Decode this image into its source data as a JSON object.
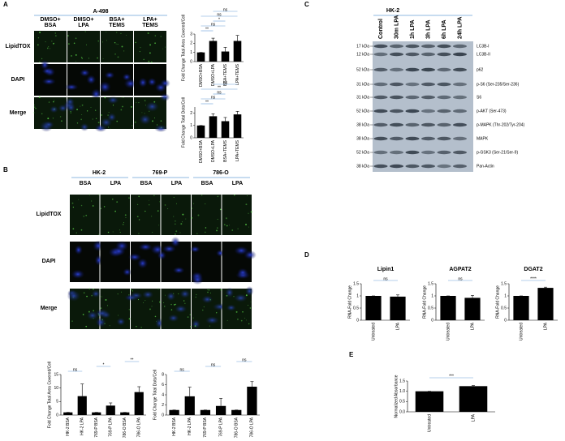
{
  "panels": {
    "a": {
      "letter": "A",
      "title": "A-498",
      "columns": [
        [
          "DMSO+",
          "BSA"
        ],
        [
          "DMSO+",
          "LPA"
        ],
        [
          "BSA+",
          "TEMS"
        ],
        [
          "LPA+",
          "TEMS"
        ]
      ],
      "rows": [
        "LipidTOX",
        "DAPI",
        "Merge"
      ]
    },
    "b": {
      "letter": "B",
      "groups": [
        "HK-2",
        "769-P",
        "786-O"
      ],
      "columns": [
        "BSA",
        "LPA",
        "BSA",
        "LPA",
        "BSA",
        "LPA"
      ],
      "rows": [
        "LipidTOX",
        "DAPI",
        "Merge"
      ]
    },
    "c": {
      "letter": "C",
      "title": "HK-2",
      "lanes": [
        "Control",
        "30m LPA",
        "1h LPA",
        "3h LPA",
        "6h LPA",
        "24h LPA"
      ],
      "sizes": [
        "17 kDa",
        "12 kDa",
        "52 kDa",
        "31 kDa",
        "31 kDa",
        "52 kDa",
        "38 kDa",
        "38 kDa",
        "52 kDa",
        "38 kDa"
      ],
      "proteins": [
        "LC3B-I",
        "LC3B-II",
        "p62",
        "p-S6 (Ser-235/Ser-236)",
        "S6",
        "p-AKT (Ser-473)",
        "p-MAPK (Thr-202/Tyr-204)",
        "MAPK",
        "p-GSK3 (Ser-21/Ser-9)",
        "Pan-Actin"
      ]
    },
    "d": {
      "letter": "D"
    },
    "e": {
      "letter": "E"
    }
  },
  "chart_data": [
    {
      "type": "bar",
      "ylabel": "Fold Change Total Area Covered/Cell",
      "categories": [
        "DMSO+BSA",
        "DMSO+LPA",
        "BSA+TEMS",
        "LPA+TEMS"
      ],
      "values": [
        1,
        2.25,
        1.1,
        2.25
      ],
      "errors": [
        0,
        0.3,
        0.45,
        0.6
      ],
      "color": "#000000",
      "ylim": [
        0,
        3
      ],
      "yticks": [
        0,
        1,
        2,
        3
      ],
      "brackets": [
        {
          "label": "**",
          "from": 0,
          "to": 1
        },
        {
          "label": "ns",
          "from": 0,
          "to": 2
        },
        {
          "label": "*",
          "from": 1,
          "to": 2
        },
        {
          "label": "ns",
          "from": 0,
          "to": 3
        },
        {
          "label": "ns",
          "from": 1,
          "to": 3
        }
      ]
    },
    {
      "type": "bar",
      "ylabel": "Fold Change Total Dots/Cell",
      "categories": [
        "DMSO+BSA",
        "DMSO+LPA",
        "BSA+TEMS",
        "LPA+TEMS"
      ],
      "values": [
        1,
        1.75,
        1.35,
        1.9
      ],
      "errors": [
        0,
        0.2,
        0.3,
        0.25
      ],
      "color": "#000000",
      "ylim": [
        0,
        2.5
      ],
      "yticks": [
        0,
        1,
        2
      ],
      "brackets": [
        {
          "label": "**",
          "from": 0,
          "to": 1
        },
        {
          "label": "ns",
          "from": 0,
          "to": 2
        },
        {
          "label": "ns",
          "from": 1,
          "to": 2
        },
        {
          "label": "**",
          "from": 0,
          "to": 3
        },
        {
          "label": "ns",
          "from": 1,
          "to": 3
        }
      ]
    },
    {
      "type": "bar",
      "ylabel": "Fold Change Total Area Covered/Cell",
      "categories": [
        "HK-2 BSA",
        "HK-2 LPA",
        "769-P BSA",
        "769-P LPA",
        "786-O BSA",
        "786-O LPA"
      ],
      "values": [
        1,
        7,
        1,
        3.5,
        1,
        8.5
      ],
      "errors": [
        0,
        4.5,
        0,
        1,
        0,
        2
      ],
      "color": "#000000",
      "ylim": [
        0,
        15
      ],
      "yticks": [
        0,
        5,
        10,
        15
      ],
      "brackets": [
        {
          "label": "ns",
          "from": 0,
          "to": 1
        },
        {
          "label": "*",
          "from": 2,
          "to": 3
        },
        {
          "label": "**",
          "from": 4,
          "to": 5
        }
      ]
    },
    {
      "type": "bar",
      "ylabel": "Fold Change Total Dots/Cell",
      "categories": [
        "HK-2 BSA",
        "HK-2 LPA",
        "769-P BSA",
        "769-P LPA",
        "786-O BSA",
        "786-O LPA"
      ],
      "values": [
        1,
        3.7,
        1,
        1.8,
        1,
        5.6
      ],
      "errors": [
        0,
        1.8,
        0,
        1.5,
        0,
        1
      ],
      "color": "#000000",
      "ylim": [
        0,
        8
      ],
      "yticks": [
        0,
        2,
        4,
        6,
        8
      ],
      "brackets": [
        {
          "label": "ns",
          "from": 0,
          "to": 1
        },
        {
          "label": "ns",
          "from": 2,
          "to": 3
        },
        {
          "label": "ns",
          "from": 4,
          "to": 5
        }
      ]
    },
    {
      "type": "bar",
      "title": "Lipin1",
      "ylabel": "RNA-Fold Change",
      "categories": [
        "Untreated",
        "LPA"
      ],
      "values": [
        1,
        0.97
      ],
      "errors": [
        0,
        0.07
      ],
      "color": "#000000",
      "ylim": [
        0,
        1.5
      ],
      "yticks": [
        0,
        0.5,
        1,
        1.5
      ],
      "brackets": [
        {
          "label": "ns",
          "from": 0,
          "to": 1
        }
      ]
    },
    {
      "type": "bar",
      "title": "AGPAT2",
      "ylabel": "RNA-Fold Change",
      "categories": [
        "Untreated",
        "LPA"
      ],
      "values": [
        1,
        0.92
      ],
      "errors": [
        0,
        0.1
      ],
      "color": "#000000",
      "ylim": [
        0,
        1.5
      ],
      "yticks": [
        0,
        0.5,
        1,
        1.5
      ],
      "brackets": [
        {
          "label": "ns",
          "from": 0,
          "to": 1
        }
      ]
    },
    {
      "type": "bar",
      "title": "DGAT2",
      "ylabel": "RNA-Fold Change",
      "categories": [
        "Untreated",
        "LPA"
      ],
      "values": [
        1,
        1.33
      ],
      "errors": [
        0,
        0.03
      ],
      "color": "#000000",
      "ylim": [
        0,
        1.5
      ],
      "yticks": [
        0,
        0.5,
        1,
        1.5
      ],
      "brackets": [
        {
          "label": "****",
          "from": 0,
          "to": 1
        }
      ]
    },
    {
      "type": "bar",
      "ylabel": "Normalized Absorbance",
      "categories": [
        "Untreated",
        "LPA"
      ],
      "values": [
        1,
        1.25
      ],
      "errors": [
        0,
        0.03
      ],
      "color": "#000000",
      "ylim": [
        0,
        1.5
      ],
      "yticks": [
        {
          "value": 0,
          "label": "0.0"
        },
        {
          "value": 0.5,
          "label": "0.5"
        },
        {
          "value": 1,
          "label": "1.0"
        },
        {
          "value": 1.5,
          "label": "1.5"
        }
      ],
      "brackets": [
        {
          "label": "***",
          "from": 0,
          "to": 1
        }
      ]
    }
  ]
}
